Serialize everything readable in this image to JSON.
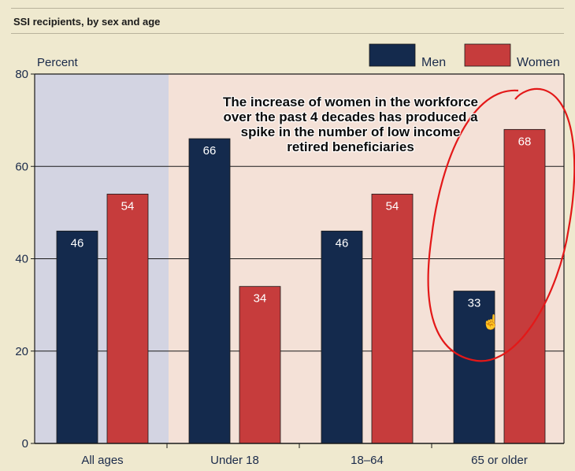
{
  "heading": "SSI recipients, by sex and age",
  "annotation": "The increase of women in the workforce over the past 4 decades has produced a spike in the number of low income retired beneficiaries",
  "colors": {
    "men": "#142a4d",
    "women": "#c63c3c",
    "shade_all_ages": "#d3d4e2",
    "shade_other": "#f4e1d7",
    "callout_circle": "#e31818"
  },
  "chart_data": {
    "type": "bar",
    "ylabel": "Percent",
    "ylim": [
      0,
      80
    ],
    "yticks": [
      0,
      20,
      40,
      60,
      80
    ],
    "categories": [
      "All ages",
      "Under 18",
      "18–64",
      "65 or older"
    ],
    "series": [
      {
        "name": "Men",
        "values": [
          46,
          66,
          46,
          33
        ]
      },
      {
        "name": "Women",
        "values": [
          54,
          34,
          54,
          68
        ]
      }
    ],
    "grid": true,
    "legend": "top-right"
  }
}
